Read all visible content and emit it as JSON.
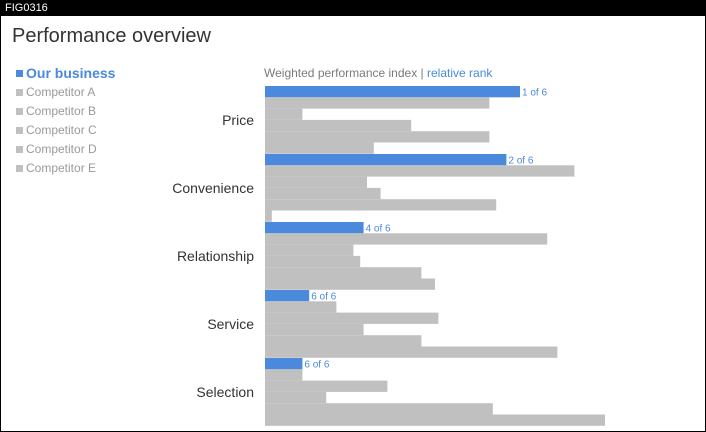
{
  "figure_tag": "FIG0316",
  "title": "Performance overview",
  "chart_header": {
    "main": "Weighted performance index",
    "separator": "|",
    "rank": "relative rank"
  },
  "colors": {
    "ours": "#4a89dc",
    "competitor": "#c0c0c0",
    "text": "#333333",
    "muted": "#9a9a9a"
  },
  "chart_data": {
    "type": "bar",
    "orientation": "horizontal",
    "title": "Performance overview",
    "subtitle": "Weighted performance index | relative rank",
    "legend_position": "top-left",
    "grid": false,
    "xlim": [
      0,
      100
    ],
    "categories": [
      "Price",
      "Convenience",
      "Relationship",
      "Service",
      "Selection"
    ],
    "series": [
      {
        "name": "Our business",
        "values": [
          75,
          71,
          29,
          13,
          11
        ],
        "rank_labels": [
          "1 of 6",
          "2 of 6",
          "4 of 6",
          "6 of 6",
          "6 of 6"
        ]
      },
      {
        "name": "Competitor A",
        "values": [
          66,
          91,
          83,
          21,
          11
        ]
      },
      {
        "name": "Competitor B",
        "values": [
          11,
          30,
          26,
          51,
          36
        ]
      },
      {
        "name": "Competitor C",
        "values": [
          43,
          34,
          28,
          29,
          18
        ]
      },
      {
        "name": "Competitor D",
        "values": [
          66,
          68,
          46,
          46,
          67
        ]
      },
      {
        "name": "Competitor E",
        "values": [
          32,
          2,
          50,
          86,
          100
        ]
      }
    ]
  }
}
